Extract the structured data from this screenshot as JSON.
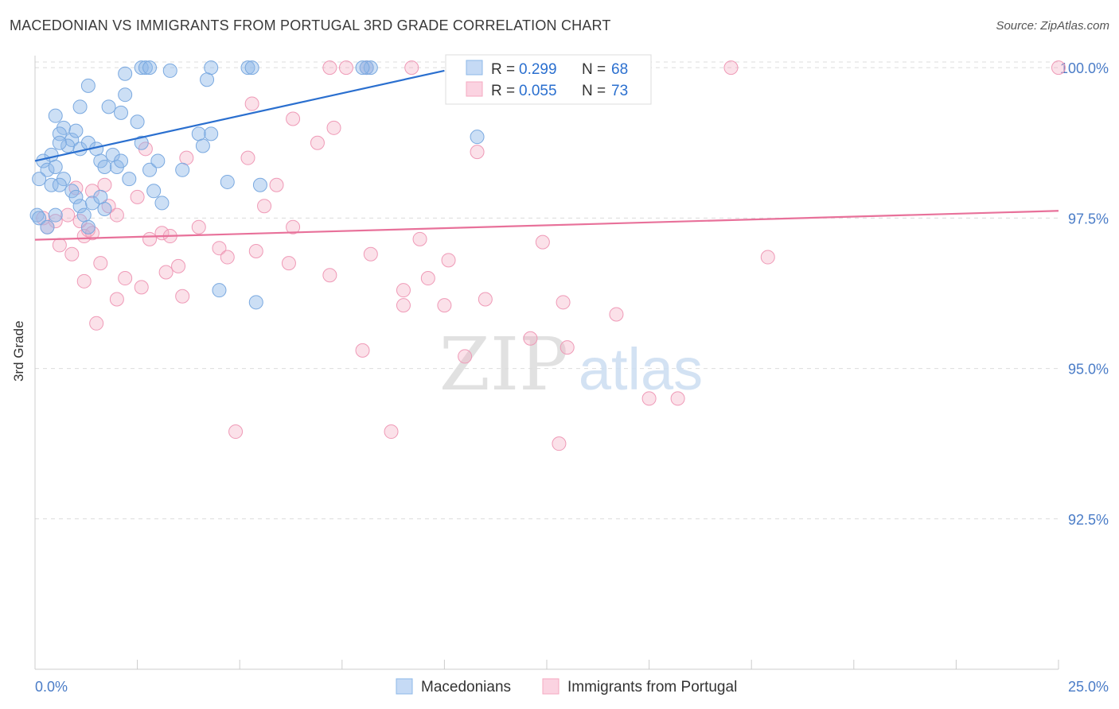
{
  "title": "MACEDONIAN VS IMMIGRANTS FROM PORTUGAL 3RD GRADE CORRELATION CHART",
  "source": "Source: ZipAtlas.com",
  "watermark": {
    "zip": "ZIP",
    "atlas": "atlas"
  },
  "colors": {
    "blue": "#8db8e8",
    "blue_line": "#2a6fcf",
    "pink": "#f4a9c1",
    "pink_line": "#e8719a",
    "axis_text": "#4a7cc7"
  },
  "legend_top": [
    {
      "r_label": "R =",
      "r_value": "0.299",
      "n_label": "N =",
      "n_value": "68",
      "color": "blue"
    },
    {
      "r_label": "R =",
      "r_value": "0.055",
      "n_label": "N =",
      "n_value": "73",
      "color": "pink"
    }
  ],
  "legend_bottom": [
    "Macedonians",
    "Immigrants from Portugal"
  ],
  "chart_data": {
    "type": "scatter",
    "xlabel": "",
    "ylabel": "3rd Grade",
    "x_ticks": [
      "0.0%",
      "25.0%"
    ],
    "y_ticks": [
      "100.0%",
      "97.5%",
      "95.0%",
      "92.5%"
    ],
    "xlim": [
      0,
      25
    ],
    "ylim": [
      90.0,
      100.2
    ],
    "grid": true,
    "series": [
      {
        "name": "Macedonians",
        "trend": [
          [
            0,
            98.45
          ],
          [
            10.0,
            99.95
          ]
        ],
        "points": [
          [
            0.5,
            99.2
          ],
          [
            0.7,
            99.0
          ],
          [
            0.9,
            98.8
          ],
          [
            1.3,
            99.7
          ],
          [
            2.2,
            99.9
          ],
          [
            2.6,
            100.0
          ],
          [
            2.7,
            100.0
          ],
          [
            2.8,
            100.0
          ],
          [
            3.3,
            99.95
          ],
          [
            4.3,
            100.0
          ],
          [
            4.2,
            99.8
          ],
          [
            5.2,
            100.0
          ],
          [
            5.3,
            100.0
          ],
          [
            8.1,
            100.0
          ],
          [
            8.2,
            100.0
          ],
          [
            1.1,
            99.35
          ],
          [
            1.8,
            99.35
          ],
          [
            2.1,
            99.25
          ],
          [
            2.2,
            99.55
          ],
          [
            0.6,
            98.9
          ],
          [
            0.8,
            98.7
          ],
          [
            1.0,
            98.95
          ],
          [
            1.1,
            98.65
          ],
          [
            1.3,
            98.75
          ],
          [
            0.4,
            98.55
          ],
          [
            0.6,
            98.75
          ],
          [
            0.2,
            98.45
          ],
          [
            0.3,
            98.3
          ],
          [
            0.5,
            98.35
          ],
          [
            0.4,
            98.05
          ],
          [
            0.1,
            98.15
          ],
          [
            0.7,
            98.15
          ],
          [
            0.6,
            98.05
          ],
          [
            0.9,
            97.95
          ],
          [
            1.0,
            97.85
          ],
          [
            1.5,
            98.65
          ],
          [
            1.6,
            98.45
          ],
          [
            1.7,
            98.35
          ],
          [
            1.9,
            98.55
          ],
          [
            2.0,
            98.35
          ],
          [
            2.5,
            99.1
          ],
          [
            2.6,
            98.75
          ],
          [
            2.1,
            98.45
          ],
          [
            2.3,
            98.15
          ],
          [
            2.8,
            98.3
          ],
          [
            2.9,
            97.95
          ],
          [
            3.1,
            97.75
          ],
          [
            3.6,
            98.3
          ],
          [
            4.0,
            98.9
          ],
          [
            4.1,
            98.7
          ],
          [
            4.3,
            98.9
          ],
          [
            3.0,
            98.45
          ],
          [
            4.7,
            98.1
          ],
          [
            5.5,
            98.05
          ],
          [
            0.05,
            97.55
          ],
          [
            0.1,
            97.5
          ],
          [
            0.3,
            97.35
          ],
          [
            0.5,
            97.55
          ],
          [
            1.1,
            97.7
          ],
          [
            1.4,
            97.75
          ],
          [
            1.6,
            97.85
          ],
          [
            1.2,
            97.55
          ],
          [
            1.7,
            97.65
          ],
          [
            1.3,
            97.35
          ],
          [
            4.5,
            96.3
          ],
          [
            5.4,
            96.1
          ],
          [
            10.8,
            98.85
          ],
          [
            8.0,
            100.0
          ]
        ]
      },
      {
        "name": "Immigrants from Portugal",
        "trend": [
          [
            0,
            97.14
          ],
          [
            25,
            97.62
          ]
        ],
        "points": [
          [
            7.2,
            100.0
          ],
          [
            7.6,
            100.0
          ],
          [
            8.1,
            100.0
          ],
          [
            9.2,
            100.0
          ],
          [
            11.2,
            100.0
          ],
          [
            17.0,
            100.0
          ],
          [
            25.0,
            100.0
          ],
          [
            5.3,
            99.4
          ],
          [
            6.3,
            99.15
          ],
          [
            6.9,
            98.75
          ],
          [
            7.3,
            99.0
          ],
          [
            2.7,
            98.65
          ],
          [
            3.7,
            98.5
          ],
          [
            5.2,
            98.5
          ],
          [
            5.9,
            98.05
          ],
          [
            10.8,
            98.6
          ],
          [
            5.6,
            97.7
          ],
          [
            6.3,
            97.35
          ],
          [
            1.1,
            97.45
          ],
          [
            1.3,
            97.3
          ],
          [
            1.2,
            97.2
          ],
          [
            1.4,
            97.25
          ],
          [
            0.5,
            97.45
          ],
          [
            0.2,
            97.5
          ],
          [
            0.3,
            97.35
          ],
          [
            0.6,
            97.05
          ],
          [
            0.9,
            96.9
          ],
          [
            1.2,
            96.45
          ],
          [
            1.5,
            95.75
          ],
          [
            1.6,
            96.75
          ],
          [
            1.8,
            97.7
          ],
          [
            2.0,
            97.55
          ],
          [
            2.5,
            97.85
          ],
          [
            2.8,
            97.15
          ],
          [
            3.1,
            97.25
          ],
          [
            3.3,
            97.2
          ],
          [
            3.5,
            96.7
          ],
          [
            3.2,
            96.6
          ],
          [
            3.6,
            96.2
          ],
          [
            4.0,
            97.35
          ],
          [
            4.5,
            97.0
          ],
          [
            4.7,
            96.85
          ],
          [
            5.4,
            96.95
          ],
          [
            6.2,
            96.75
          ],
          [
            7.2,
            96.55
          ],
          [
            8.2,
            96.9
          ],
          [
            9.0,
            96.3
          ],
          [
            9.4,
            97.15
          ],
          [
            10.1,
            96.8
          ],
          [
            9.6,
            96.5
          ],
          [
            9.0,
            96.05
          ],
          [
            10.0,
            96.05
          ],
          [
            11.0,
            96.15
          ],
          [
            12.4,
            97.1
          ],
          [
            12.9,
            96.1
          ],
          [
            14.2,
            95.9
          ],
          [
            8.0,
            95.3
          ],
          [
            10.5,
            95.2
          ],
          [
            12.1,
            95.5
          ],
          [
            13.0,
            95.35
          ],
          [
            15.0,
            94.5
          ],
          [
            15.7,
            94.5
          ],
          [
            4.9,
            93.95
          ],
          [
            8.7,
            93.95
          ],
          [
            12.8,
            93.75
          ],
          [
            17.9,
            96.85
          ],
          [
            1.7,
            98.05
          ],
          [
            2.2,
            96.5
          ],
          [
            2.6,
            96.35
          ],
          [
            0.8,
            97.55
          ],
          [
            1.0,
            98.0
          ],
          [
            1.4,
            97.95
          ],
          [
            2.0,
            96.15
          ]
        ]
      }
    ]
  }
}
